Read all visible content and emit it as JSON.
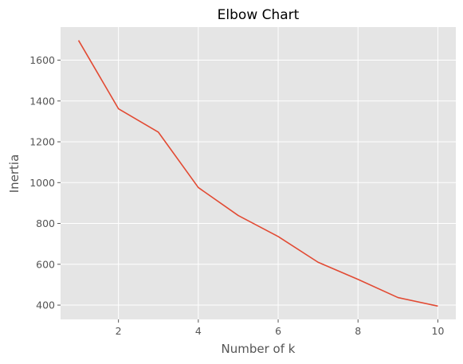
{
  "chart_data": {
    "type": "line",
    "title": "Elbow Chart",
    "xlabel": "Number of k",
    "ylabel": "Inertia",
    "x": [
      1,
      2,
      3,
      4,
      5,
      6,
      7,
      8,
      9,
      10
    ],
    "series": [
      {
        "values": [
          1697,
          1362,
          1247,
          976,
          839,
          736,
          610,
          526,
          437,
          395
        ],
        "color": "#e24a33"
      }
    ],
    "xlim": [
      0.55,
      10.45
    ],
    "ylim": [
      330,
      1762
    ],
    "x_ticks": [
      2,
      4,
      6,
      8,
      10
    ],
    "x_tick_labels": [
      "2",
      "4",
      "6",
      "8",
      "10"
    ],
    "y_ticks": [
      400,
      600,
      800,
      1000,
      1200,
      1400,
      1600
    ],
    "y_tick_labels": [
      "400",
      "600",
      "800",
      "1000",
      "1200",
      "1400",
      "1600"
    ],
    "grid": true,
    "background": "#e5e5e5",
    "grid_color": "#ffffff",
    "text_color": "#555555"
  }
}
